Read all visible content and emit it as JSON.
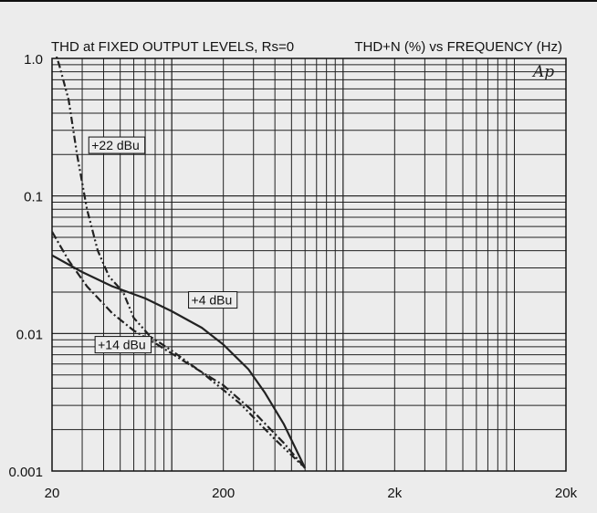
{
  "chart_data": {
    "type": "line",
    "title": "THD at FIXED OUTPUT LEVELS, Rs=0",
    "subtitle": "THD+N (%) vs FREQUENCY (Hz)",
    "xscale": "log",
    "yscale": "log",
    "xlim": [
      20,
      20000
    ],
    "ylim": [
      0.001,
      1.0
    ],
    "x_ticks": [
      {
        "value": 20,
        "label": "20"
      },
      {
        "value": 200,
        "label": "200"
      },
      {
        "value": 2000,
        "label": "2k"
      },
      {
        "value": 20000,
        "label": "20k"
      }
    ],
    "y_ticks": [
      {
        "value": 1.0,
        "label": "1.0"
      },
      {
        "value": 0.1,
        "label": "0.1"
      },
      {
        "value": 0.01,
        "label": "0.01"
      },
      {
        "value": 0.001,
        "label": "0.001"
      }
    ],
    "grid": true,
    "logo": "Ap",
    "series": [
      {
        "name": "+22 dBu",
        "style": "dash-dot-dot",
        "color": "#222222",
        "points": [
          [
            20,
            1.3
          ],
          [
            22,
            0.9
          ],
          [
            25,
            0.5
          ],
          [
            28,
            0.2
          ],
          [
            32,
            0.08
          ],
          [
            37,
            0.04
          ],
          [
            43,
            0.026
          ],
          [
            52,
            0.02
          ],
          [
            60,
            0.013
          ],
          [
            75,
            0.0095
          ],
          [
            100,
            0.0075
          ],
          [
            150,
            0.0052
          ],
          [
            250,
            0.0031
          ],
          [
            400,
            0.0017
          ],
          [
            600,
            0.00105
          ]
        ]
      },
      {
        "name": "+4 dBu",
        "style": "solid",
        "color": "#222222",
        "points": [
          [
            20,
            0.037
          ],
          [
            30,
            0.028
          ],
          [
            45,
            0.022
          ],
          [
            70,
            0.018
          ],
          [
            100,
            0.0145
          ],
          [
            150,
            0.011
          ],
          [
            200,
            0.0083
          ],
          [
            280,
            0.0055
          ],
          [
            350,
            0.0037
          ],
          [
            450,
            0.0022
          ],
          [
            600,
            0.00105
          ]
        ]
      },
      {
        "name": "+14 dBu",
        "style": "dash-dot",
        "color": "#222222",
        "points": [
          [
            20,
            0.055
          ],
          [
            25,
            0.034
          ],
          [
            32,
            0.022
          ],
          [
            45,
            0.014
          ],
          [
            60,
            0.0105
          ],
          [
            80,
            0.0085
          ],
          [
            120,
            0.0062
          ],
          [
            200,
            0.0042
          ],
          [
            300,
            0.0027
          ],
          [
            450,
            0.0016
          ],
          [
            600,
            0.00105
          ]
        ]
      }
    ],
    "labels": [
      {
        "text": "+22 dBu",
        "x": 34,
        "y": 0.22
      },
      {
        "text": "+4 dBu",
        "x": 130,
        "y": 0.0165
      },
      {
        "text": "+14 dBu",
        "x": 37,
        "y": 0.0078
      }
    ]
  }
}
